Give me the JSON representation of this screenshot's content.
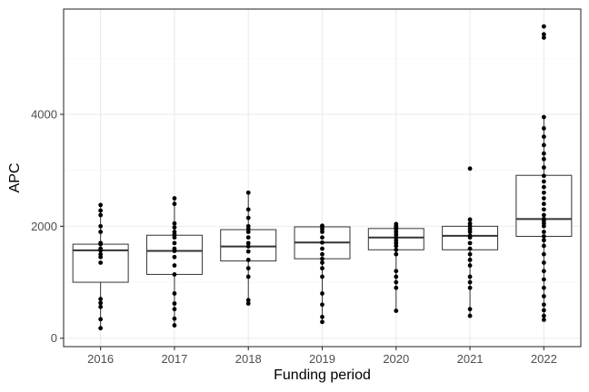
{
  "chart_data": {
    "type": "boxplot",
    "xlabel": "Funding period",
    "ylabel": "APC",
    "categories": [
      "2016",
      "2017",
      "2018",
      "2019",
      "2020",
      "2021",
      "2022"
    ],
    "ylim": [
      -150,
      5880
    ],
    "yticks": [
      0,
      2000,
      4000
    ],
    "y_tick_labels": [
      "0",
      "2000",
      "4000"
    ],
    "grid": true,
    "legend": "none",
    "colors": {
      "box_fill": "#ffffff",
      "box_stroke": "#333333",
      "median": "#333333",
      "point": "#000000",
      "grid_major": "#ebebeb",
      "grid_minor": "#f5f5f5",
      "panel_border": "#333333"
    },
    "boxes": [
      {
        "category": "2016",
        "whisker_low": 180,
        "q1": 1000,
        "median": 1570,
        "q3": 1680,
        "whisker_high": 2380
      },
      {
        "category": "2017",
        "whisker_low": 230,
        "q1": 1140,
        "median": 1560,
        "q3": 1840,
        "whisker_high": 2500
      },
      {
        "category": "2018",
        "whisker_low": 620,
        "q1": 1380,
        "median": 1640,
        "q3": 1940,
        "whisker_high": 2600
      },
      {
        "category": "2019",
        "whisker_low": 290,
        "q1": 1420,
        "median": 1710,
        "q3": 1990,
        "whisker_high": 2010
      },
      {
        "category": "2020",
        "whisker_low": 490,
        "q1": 1580,
        "median": 1800,
        "q3": 1960,
        "whisker_high": 2040
      },
      {
        "category": "2021",
        "whisker_low": 400,
        "q1": 1580,
        "median": 1830,
        "q3": 2000,
        "whisker_high": 2120
      },
      {
        "category": "2022",
        "whisker_low": 330,
        "q1": 1820,
        "median": 2130,
        "q3": 2910,
        "whisker_high": 3950
      }
    ],
    "points": [
      {
        "category": "2016",
        "values": [
          180,
          340,
          560,
          630,
          700,
          1350,
          1450,
          1500,
          1570,
          1600,
          1680,
          1700,
          1900,
          2000,
          2200,
          2280,
          2380
        ]
      },
      {
        "category": "2017",
        "values": [
          230,
          350,
          520,
          620,
          800,
          1140,
          1300,
          1450,
          1560,
          1600,
          1700,
          1800,
          1850,
          1900,
          1980,
          2050,
          2400,
          2500
        ]
      },
      {
        "category": "2018",
        "values": [
          620,
          680,
          1100,
          1250,
          1400,
          1550,
          1640,
          1700,
          1800,
          1900,
          1950,
          2000,
          2150,
          2300,
          2600
        ]
      },
      {
        "category": "2019",
        "values": [
          290,
          380,
          600,
          800,
          1100,
          1250,
          1350,
          1420,
          1500,
          1600,
          1710,
          1800,
          1900,
          1950,
          1990,
          2010
        ]
      },
      {
        "category": "2020",
        "values": [
          490,
          900,
          1000,
          1100,
          1200,
          1500,
          1580,
          1650,
          1700,
          1750,
          1800,
          1850,
          1900,
          1950,
          1980,
          2000,
          2040
        ]
      },
      {
        "category": "2021",
        "values": [
          400,
          520,
          900,
          1000,
          1100,
          1300,
          1400,
          1500,
          1600,
          1700,
          1800,
          1830,
          1900,
          1950,
          2000,
          2050,
          2120,
          3030
        ]
      },
      {
        "category": "2022",
        "values": [
          330,
          400,
          500,
          600,
          750,
          900,
          1050,
          1200,
          1350,
          1500,
          1650,
          1750,
          1820,
          1900,
          2000,
          2050,
          2100,
          2130,
          2200,
          2300,
          2400,
          2500,
          2600,
          2700,
          2800,
          2900,
          3050,
          3200,
          3300,
          3450,
          3600,
          3750,
          3950,
          5370,
          5430,
          5570
        ]
      }
    ]
  }
}
